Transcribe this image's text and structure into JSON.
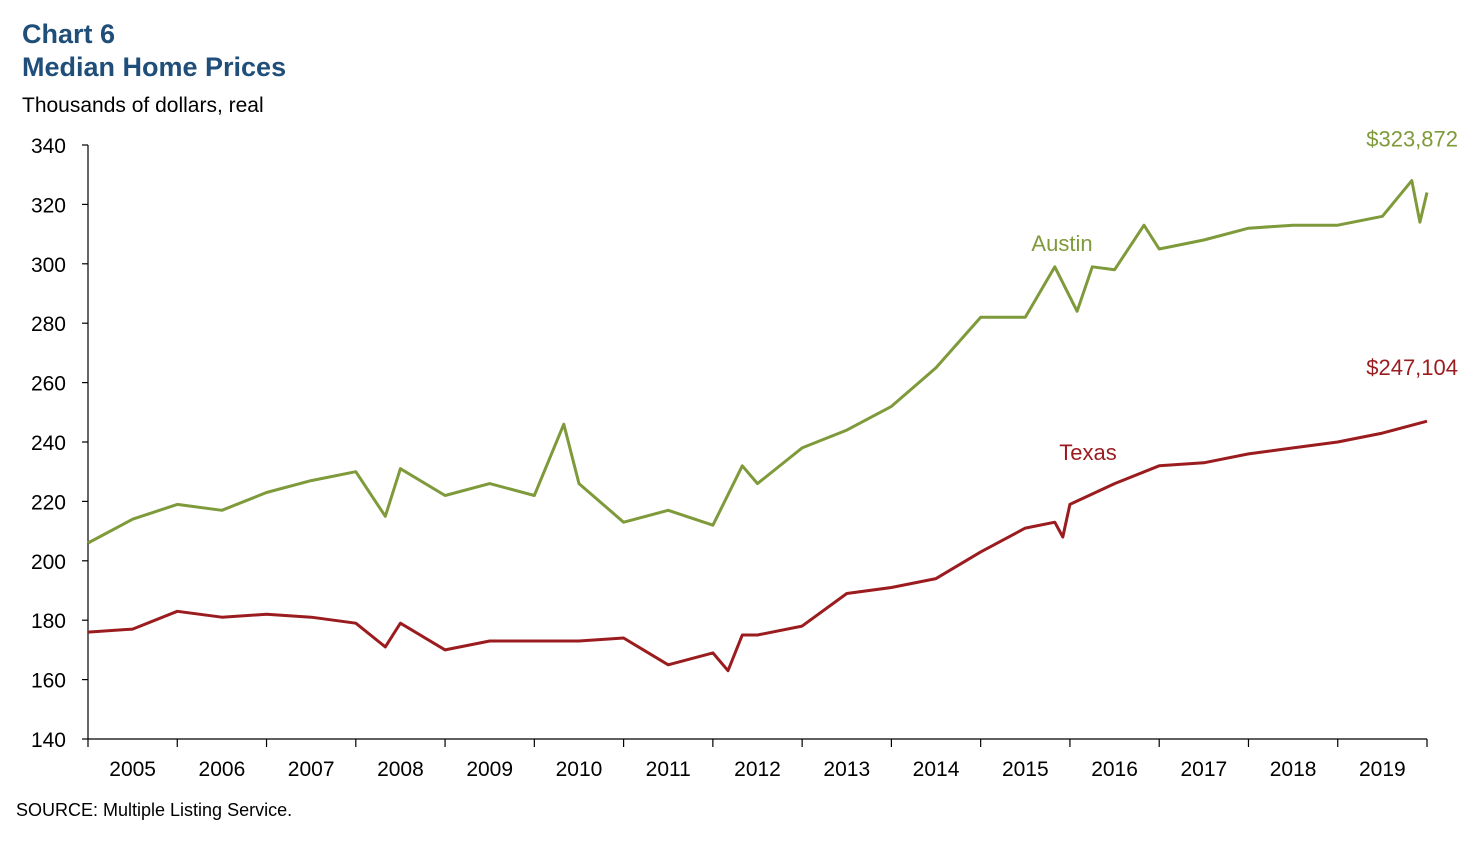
{
  "header": {
    "chart_number": "Chart 6",
    "title": "Median Home Prices",
    "units": "Thousands of dollars, real"
  },
  "source": "SOURCE: Multiple Listing Service.",
  "colors": {
    "austin": "#7f9a3b",
    "texas": "#9b1c1f",
    "title": "#1f4e79",
    "axis": "#000000"
  },
  "chart_data": {
    "type": "line",
    "title": "Median Home Prices",
    "ylabel": "Thousands of dollars, real",
    "xlabel": "",
    "ylim": [
      140,
      340
    ],
    "yticks": [
      140,
      160,
      180,
      200,
      220,
      240,
      260,
      280,
      300,
      320,
      340
    ],
    "x_start": 2004.5,
    "x_end": 2019.5,
    "x_tick_labels": [
      "2005",
      "2006",
      "2007",
      "2008",
      "2009",
      "2010",
      "2011",
      "2012",
      "2013",
      "2014",
      "2015",
      "2016",
      "2017",
      "2018",
      "2019"
    ],
    "grid": false,
    "legend": "inline labels",
    "series": [
      {
        "name": "Austin",
        "color": "#7f9a3b",
        "label_value": "$323,872",
        "x": [
          2004.5,
          2005.0,
          2005.5,
          2006.0,
          2006.5,
          2007.0,
          2007.5,
          2007.83,
          2008.0,
          2008.5,
          2009.0,
          2009.5,
          2009.83,
          2010.0,
          2010.5,
          2011.0,
          2011.5,
          2011.83,
          2012.0,
          2012.5,
          2013.0,
          2013.5,
          2014.0,
          2014.5,
          2015.0,
          2015.33,
          2015.58,
          2015.75,
          2016.0,
          2016.33,
          2016.5,
          2017.0,
          2017.5,
          2018.0,
          2018.5,
          2019.0,
          2019.33,
          2019.42,
          2019.5
        ],
        "values": [
          206,
          214,
          219,
          217,
          223,
          227,
          230,
          215,
          231,
          222,
          226,
          222,
          246,
          226,
          213,
          217,
          212,
          232,
          226,
          238,
          244,
          252,
          265,
          282,
          282,
          299,
          284,
          299,
          298,
          313,
          305,
          308,
          312,
          313,
          313,
          316,
          328,
          314,
          324
        ]
      },
      {
        "name": "Texas",
        "color": "#9b1c1f",
        "label_value": "$247,104",
        "x": [
          2004.5,
          2005.0,
          2005.5,
          2006.0,
          2006.5,
          2007.0,
          2007.5,
          2007.83,
          2008.0,
          2008.5,
          2009.0,
          2009.5,
          2010.0,
          2010.5,
          2011.0,
          2011.5,
          2011.67,
          2011.83,
          2012.0,
          2012.5,
          2013.0,
          2013.5,
          2014.0,
          2014.5,
          2015.0,
          2015.33,
          2015.42,
          2015.5,
          2016.0,
          2016.5,
          2017.0,
          2017.5,
          2018.0,
          2018.5,
          2019.0,
          2019.5
        ],
        "values": [
          176,
          177,
          183,
          181,
          182,
          181,
          179,
          171,
          179,
          170,
          173,
          173,
          173,
          174,
          165,
          169,
          163,
          175,
          175,
          178,
          189,
          191,
          194,
          203,
          211,
          213,
          208,
          219,
          226,
          232,
          233,
          236,
          238,
          240,
          243,
          247
        ]
      }
    ]
  }
}
